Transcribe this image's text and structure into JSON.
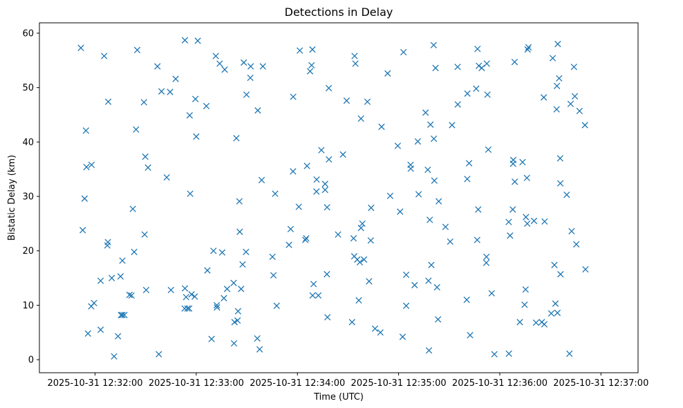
{
  "chart_data": {
    "type": "scatter",
    "title": "Detections in Delay",
    "xlabel": "Time (UTC)",
    "ylabel": "Bistatic Delay (km)",
    "marker": "x",
    "color": "#1f77b4",
    "grid": false,
    "xlim_seconds": [
      -33,
      322
    ],
    "ylim": [
      -2.4,
      61.9
    ],
    "x_ticks": [
      {
        "seconds": 0,
        "label": "2025-10-31 12:32:00"
      },
      {
        "seconds": 60,
        "label": "2025-10-31 12:33:00"
      },
      {
        "seconds": 120,
        "label": "2025-10-31 12:34:00"
      },
      {
        "seconds": 180,
        "label": "2025-10-31 12:35:00"
      },
      {
        "seconds": 240,
        "label": "2025-10-31 12:36:00"
      },
      {
        "seconds": 300,
        "label": "2025-10-31 12:37:00"
      }
    ],
    "y_ticks": [
      0,
      10,
      20,
      30,
      40,
      50,
      60
    ],
    "points": [
      [
        -8.4,
        57.3
      ],
      [
        -7.3,
        23.8
      ],
      [
        -6.2,
        29.6
      ],
      [
        -5.4,
        42.1
      ],
      [
        -5.1,
        35.4
      ],
      [
        -4.2,
        4.8
      ],
      [
        -2.1,
        35.8
      ],
      [
        -2.3,
        9.8
      ],
      [
        -0.6,
        10.4
      ],
      [
        3.3,
        14.5
      ],
      [
        3.3,
        5.5
      ],
      [
        5.4,
        55.8
      ],
      [
        7.3,
        21
      ],
      [
        7.6,
        21.6
      ],
      [
        7.8,
        47.4
      ],
      [
        9.9,
        15
      ],
      [
        11.3,
        0.6
      ],
      [
        13.6,
        4.3
      ],
      [
        15.1,
        15.3
      ],
      [
        15.4,
        8.2
      ],
      [
        16.2,
        18.2
      ],
      [
        16.2,
        8.2
      ],
      [
        17.4,
        8.2
      ],
      [
        20.4,
        11.9
      ],
      [
        21.6,
        11.8
      ],
      [
        22.4,
        27.7
      ],
      [
        23.2,
        19.8
      ],
      [
        24.3,
        42.3
      ],
      [
        25,
        56.9
      ],
      [
        29,
        47.3
      ],
      [
        29.4,
        23
      ],
      [
        29.8,
        37.3
      ],
      [
        30.3,
        12.8
      ],
      [
        31.4,
        35.3
      ],
      [
        37,
        53.9
      ],
      [
        37.8,
        1
      ],
      [
        39.4,
        49.3
      ],
      [
        42.5,
        33.5
      ],
      [
        44.5,
        49.2
      ],
      [
        45,
        12.8
      ],
      [
        47.8,
        51.6
      ],
      [
        53.3,
        58.7
      ],
      [
        53.1,
        9.4
      ],
      [
        53.3,
        13.1
      ],
      [
        54,
        11.5
      ],
      [
        54.8,
        9.4
      ],
      [
        55.8,
        9.4
      ],
      [
        56.1,
        44.9
      ],
      [
        56.4,
        30.5
      ],
      [
        57.2,
        12
      ],
      [
        59.1,
        11.6
      ],
      [
        59.5,
        47.9
      ],
      [
        60,
        41
      ],
      [
        60.9,
        58.6
      ],
      [
        66,
        46.6
      ],
      [
        66.6,
        16.4
      ],
      [
        69.1,
        3.8
      ],
      [
        70.2,
        20
      ],
      [
        71.6,
        55.8
      ],
      [
        72.3,
        9.6
      ],
      [
        72.2,
        10
      ],
      [
        73.9,
        54.4
      ],
      [
        75.4,
        19.7
      ],
      [
        76.4,
        11.3
      ],
      [
        76.9,
        53.3
      ],
      [
        78.3,
        13
      ],
      [
        82.2,
        14.1
      ],
      [
        82.4,
        3
      ],
      [
        82.7,
        6.9
      ],
      [
        83.8,
        40.7
      ],
      [
        84.5,
        7.2
      ],
      [
        84.8,
        8.9
      ],
      [
        85.6,
        29.1
      ],
      [
        85.8,
        23.5
      ],
      [
        86.6,
        13
      ],
      [
        87.5,
        17.5
      ],
      [
        88.2,
        54.6
      ],
      [
        89.5,
        19.8
      ],
      [
        89.8,
        48.7
      ],
      [
        92.1,
        51.8
      ],
      [
        92.3,
        53.9
      ],
      [
        96.2,
        3.9
      ],
      [
        96.5,
        45.8
      ],
      [
        97.6,
        1.9
      ],
      [
        98.8,
        33
      ],
      [
        99.5,
        53.9
      ],
      [
        105.2,
        18.9
      ],
      [
        105.8,
        15.5
      ],
      [
        106.8,
        30.5
      ],
      [
        107.7,
        9.9
      ],
      [
        115,
        21.1
      ],
      [
        116,
        24
      ],
      [
        117.4,
        34.6
      ],
      [
        117.5,
        48.3
      ],
      [
        120.8,
        28.1
      ],
      [
        121.4,
        56.8
      ],
      [
        124.7,
        22
      ],
      [
        125.2,
        22.3
      ],
      [
        125.7,
        35.6
      ],
      [
        127.5,
        53
      ],
      [
        128.4,
        54.1
      ],
      [
        128.9,
        57
      ],
      [
        129,
        11.8
      ],
      [
        129.6,
        13.9
      ],
      [
        131.3,
        30.9
      ],
      [
        131.4,
        33.1
      ],
      [
        132.4,
        11.8
      ],
      [
        134.2,
        38.5
      ],
      [
        136.4,
        32.3
      ],
      [
        136.4,
        31.2
      ],
      [
        137.6,
        28
      ],
      [
        137.5,
        15.7
      ],
      [
        137.8,
        7.8
      ],
      [
        138.6,
        49.9
      ],
      [
        138.7,
        36.8
      ],
      [
        144.1,
        23
      ],
      [
        147,
        37.7
      ],
      [
        149.2,
        47.6
      ],
      [
        152.4,
        6.9
      ],
      [
        153.3,
        22.3
      ],
      [
        153.7,
        19
      ],
      [
        153.9,
        55.8
      ],
      [
        154.4,
        54.4
      ],
      [
        155.5,
        18.4
      ],
      [
        156.4,
        10.9
      ],
      [
        157,
        17.9
      ],
      [
        157.7,
        44.3
      ],
      [
        157.7,
        24.2
      ],
      [
        158.5,
        25
      ],
      [
        159.5,
        18.4
      ],
      [
        161.5,
        47.4
      ],
      [
        162.5,
        14.4
      ],
      [
        163.5,
        21.9
      ],
      [
        163.7,
        27.9
      ],
      [
        166,
        5.7
      ],
      [
        169.2,
        5
      ],
      [
        169.9,
        42.8
      ],
      [
        173.5,
        52.6
      ],
      [
        175,
        30.1
      ],
      [
        179.5,
        39.3
      ],
      [
        180.9,
        27.2
      ],
      [
        182.4,
        4.2
      ],
      [
        182.9,
        56.5
      ],
      [
        184.5,
        15.6
      ],
      [
        184.5,
        9.9
      ],
      [
        187.1,
        35.8
      ],
      [
        187.2,
        35.1
      ],
      [
        189.5,
        13.7
      ],
      [
        191.4,
        40.1
      ],
      [
        191.9,
        30.4
      ],
      [
        196,
        45.4
      ],
      [
        197.3,
        34.9
      ],
      [
        197.7,
        14.5
      ],
      [
        198,
        1.7
      ],
      [
        198.5,
        25.7
      ],
      [
        198.9,
        43.2
      ],
      [
        199.4,
        17.4
      ],
      [
        200.8,
        57.8
      ],
      [
        200.9,
        40.6
      ],
      [
        201.2,
        32.9
      ],
      [
        201.9,
        53.6
      ],
      [
        202.8,
        13.3
      ],
      [
        203.4,
        7.4
      ],
      [
        203.8,
        29.1
      ],
      [
        207.8,
        24.4
      ],
      [
        210.6,
        21.7
      ],
      [
        211.7,
        43.1
      ],
      [
        215,
        53.8
      ],
      [
        215.1,
        46.9
      ],
      [
        220.4,
        11
      ],
      [
        220.7,
        33.2
      ],
      [
        220.8,
        48.9
      ],
      [
        221.8,
        36.1
      ],
      [
        222.4,
        4.5
      ],
      [
        226,
        49.8
      ],
      [
        226.6,
        22
      ],
      [
        226.8,
        57.1
      ],
      [
        227.2,
        27.6
      ],
      [
        227.6,
        54
      ],
      [
        229.3,
        53.6
      ],
      [
        232.3,
        54.4
      ],
      [
        232,
        17.8
      ],
      [
        232.1,
        18.9
      ],
      [
        232.7,
        48.7
      ],
      [
        233.2,
        38.6
      ],
      [
        235.2,
        12.2
      ],
      [
        236.8,
        1
      ],
      [
        245.4,
        1.1
      ],
      [
        245.3,
        25.3
      ],
      [
        246.1,
        22.8
      ],
      [
        247.7,
        27.6
      ],
      [
        247.9,
        36
      ],
      [
        248,
        36.7
      ],
      [
        248.8,
        54.7
      ],
      [
        248.9,
        32.7
      ],
      [
        251.9,
        6.9
      ],
      [
        253.5,
        36.3
      ],
      [
        254.7,
        10.1
      ],
      [
        255.3,
        12.9
      ],
      [
        255.5,
        26.2
      ],
      [
        256.1,
        33.4
      ],
      [
        256.3,
        25
      ],
      [
        256.5,
        57
      ],
      [
        257,
        57.4
      ],
      [
        260.3,
        25.5
      ],
      [
        261.5,
        6.8
      ],
      [
        264.9,
        6.9
      ],
      [
        266.6,
        25.4
      ],
      [
        266.1,
        48.2
      ],
      [
        266.4,
        6.5
      ],
      [
        270.5,
        8.5
      ],
      [
        271.4,
        55.4
      ],
      [
        272.4,
        17.4
      ],
      [
        273,
        10.3
      ],
      [
        273.7,
        46
      ],
      [
        273.9,
        50.3
      ],
      [
        274.2,
        8.6
      ],
      [
        274.4,
        58
      ],
      [
        275.2,
        51.7
      ],
      [
        275.8,
        37
      ],
      [
        275.9,
        32.4
      ],
      [
        276,
        15.7
      ],
      [
        279.7,
        30.3
      ],
      [
        281.3,
        1.1
      ],
      [
        282,
        47
      ],
      [
        282.6,
        23.6
      ],
      [
        284,
        53.8
      ],
      [
        284.5,
        48.4
      ],
      [
        285.4,
        21.2
      ],
      [
        287.3,
        45.7
      ],
      [
        290.5,
        43.1
      ],
      [
        290.8,
        16.6
      ]
    ]
  }
}
